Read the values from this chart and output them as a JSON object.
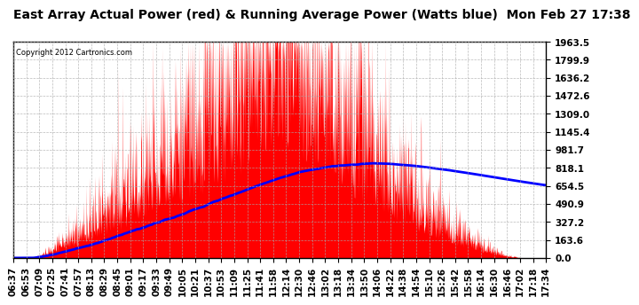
{
  "title": "East Array Actual Power (red) & Running Average Power (Watts blue)  Mon Feb 27 17:38",
  "copyright": "Copyright 2012 Cartronics.com",
  "ylabel_right_ticks": [
    0.0,
    163.6,
    327.2,
    490.9,
    654.5,
    818.1,
    981.7,
    1145.4,
    1309.0,
    1472.6,
    1636.2,
    1799.9,
    1963.5
  ],
  "ymax": 1963.5,
  "ymin": 0.0,
  "x_tick_labels": [
    "06:37",
    "06:53",
    "07:09",
    "07:25",
    "07:41",
    "07:57",
    "08:13",
    "08:29",
    "08:45",
    "09:01",
    "09:17",
    "09:33",
    "09:49",
    "10:05",
    "10:21",
    "10:37",
    "10:53",
    "11:09",
    "11:25",
    "11:41",
    "11:58",
    "12:14",
    "12:30",
    "12:46",
    "13:02",
    "13:18",
    "13:34",
    "13:50",
    "14:06",
    "14:22",
    "14:38",
    "14:54",
    "15:10",
    "15:26",
    "15:42",
    "15:58",
    "16:14",
    "16:30",
    "16:46",
    "17:02",
    "17:18",
    "17:34"
  ],
  "bg_color": "#ffffff",
  "plot_bg_color": "#ffffff",
  "grid_color": "#aaaaaa",
  "red_color": "#ff0000",
  "blue_color": "#0000ff",
  "title_fontsize": 10,
  "tick_fontsize": 7.5
}
